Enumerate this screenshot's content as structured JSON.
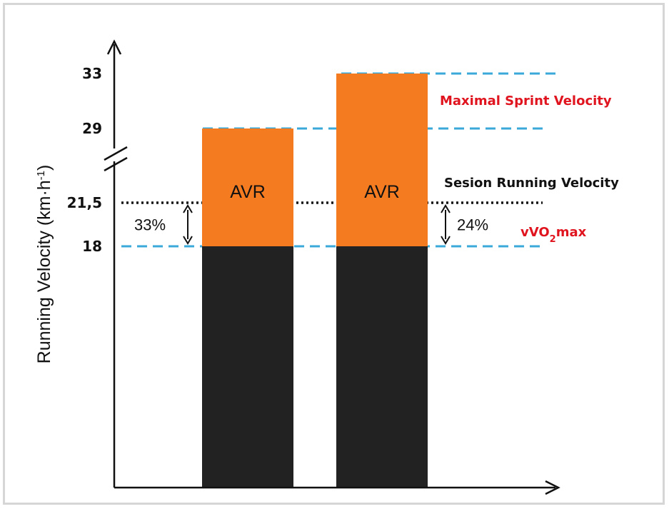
{
  "chart_data": {
    "type": "bar",
    "ylabel": "Running Velocity (km·h",
    "ylabel_sup": "-1",
    "ylabel_close": ")",
    "ticks": [
      {
        "value": 33,
        "label": "33"
      },
      {
        "value": 29,
        "label": "29"
      },
      {
        "value": 21.5,
        "label": "21,5"
      },
      {
        "value": 18,
        "label": "18"
      }
    ],
    "axis_break": true,
    "bars": [
      {
        "base": 18,
        "top": 29,
        "segment_label": "AVR",
        "base_color": "#222222",
        "top_color": "#f47b20"
      },
      {
        "base": 18,
        "top": 33,
        "segment_label": "AVR",
        "base_color": "#222222",
        "top_color": "#f47b20"
      }
    ],
    "reference_lines": [
      {
        "value": 33,
        "style": "dashed",
        "color": "#3aa9d9"
      },
      {
        "value": 29,
        "style": "dashed",
        "color": "#3aa9d9"
      },
      {
        "value": 21.5,
        "style": "dotted",
        "color": "#111111"
      },
      {
        "value": 18,
        "style": "dashed",
        "color": "#3aa9d9"
      }
    ],
    "percent_annotations": [
      {
        "bar": 0,
        "from": 18,
        "to": 21.5,
        "label": "33%"
      },
      {
        "bar": 1,
        "from": 18,
        "to": 21.5,
        "label": "24%"
      }
    ],
    "annotations": {
      "maximal_sprint": "Maximal Sprint Velocity",
      "session_running": "Sesion Running Velocity",
      "vvo2_prefix": "vVO",
      "vvo2_sub": "2",
      "vvo2_suffix": "max"
    }
  }
}
